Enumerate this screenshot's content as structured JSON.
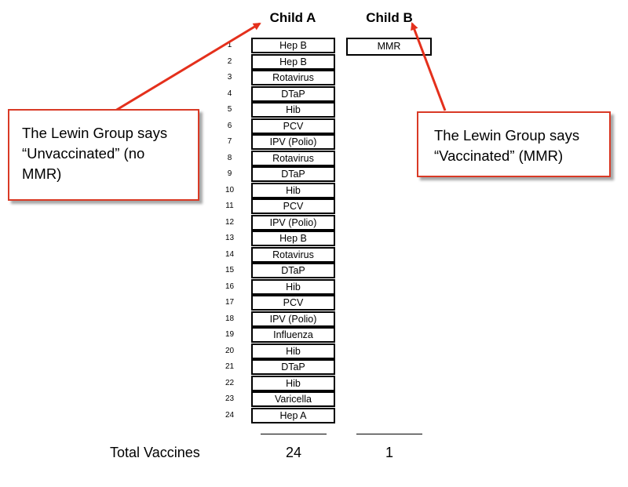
{
  "headings": {
    "child_a": "Child A",
    "child_b": "Child B"
  },
  "child_a_rows": [
    {
      "num": "1",
      "vaccine": "Hep B"
    },
    {
      "num": "2",
      "vaccine": "Hep B"
    },
    {
      "num": "3",
      "vaccine": "Rotavirus"
    },
    {
      "num": "4",
      "vaccine": "DTaP"
    },
    {
      "num": "5",
      "vaccine": "Hib"
    },
    {
      "num": "6",
      "vaccine": "PCV"
    },
    {
      "num": "7",
      "vaccine": "IPV (Polio)"
    },
    {
      "num": "8",
      "vaccine": "Rotavirus"
    },
    {
      "num": "9",
      "vaccine": "DTaP"
    },
    {
      "num": "10",
      "vaccine": "Hib"
    },
    {
      "num": "11",
      "vaccine": "PCV"
    },
    {
      "num": "12",
      "vaccine": "IPV (Polio)"
    },
    {
      "num": "13",
      "vaccine": "Hep B"
    },
    {
      "num": "14",
      "vaccine": "Rotavirus"
    },
    {
      "num": "15",
      "vaccine": "DTaP"
    },
    {
      "num": "16",
      "vaccine": "Hib"
    },
    {
      "num": "17",
      "vaccine": "PCV"
    },
    {
      "num": "18",
      "vaccine": "IPV (Polio)"
    },
    {
      "num": "19",
      "vaccine": "Influenza"
    },
    {
      "num": "20",
      "vaccine": "Hib"
    },
    {
      "num": "21",
      "vaccine": "DTaP"
    },
    {
      "num": "22",
      "vaccine": "Hib"
    },
    {
      "num": "23",
      "vaccine": "Varicella"
    },
    {
      "num": "24",
      "vaccine": "Hep A"
    }
  ],
  "child_b_rows": [
    {
      "vaccine": "MMR"
    }
  ],
  "totals": {
    "label": "Total Vaccines",
    "child_a": "24",
    "child_b": "1"
  },
  "callouts": {
    "left": [
      "The Lewin Group says",
      "“Unvaccinated” (no",
      "MMR)"
    ],
    "right": [
      "The Lewin Group says",
      "“Vaccinated” (MMR)"
    ]
  },
  "colors": {
    "callout_border": "#d93a26",
    "arrow": "#e4301c"
  }
}
